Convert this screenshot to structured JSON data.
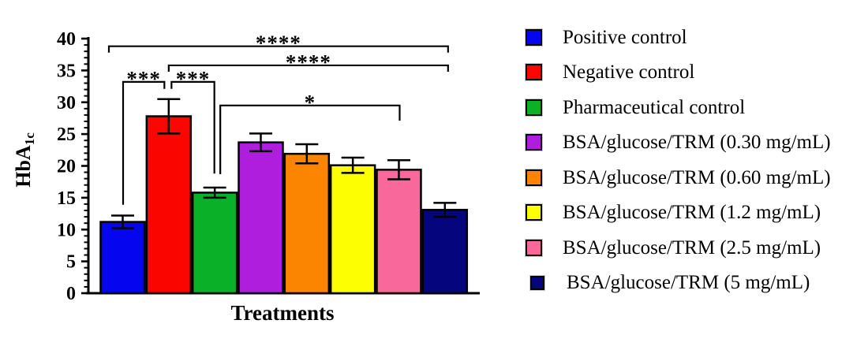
{
  "figure": {
    "background": "#ffffff"
  },
  "chart_data": {
    "type": "bar",
    "title": "",
    "xlabel": "Treatments",
    "ylabel": "HbA1c",
    "ylabel_rich": {
      "base": "HbA",
      "sub": "1c"
    },
    "ylim": [
      0,
      40
    ],
    "ytick_step": 5,
    "yminor_step": 1,
    "y_tick_labels": [
      "0",
      "5",
      "10",
      "15",
      "20",
      "25",
      "30",
      "35",
      "40"
    ],
    "grid": false,
    "legend_position": "right-of-plot",
    "categories": [
      "Positive control",
      "Negative control",
      "Pharmaceutical control",
      "BSA/glucose/TRM (0.30 mg/mL)",
      "BSA/glucose/TRM (0.60 mg/mL)",
      "BSA/glucose/TRM (1.2 mg/mL)",
      "BSA/glucose/TRM (2.5 mg/mL)",
      "BSA/glucose/TRM (5 mg/mL)"
    ],
    "values": [
      11.2,
      27.8,
      15.8,
      23.7,
      21.9,
      20.1,
      19.4,
      13.1
    ],
    "errors": [
      1.0,
      2.7,
      0.8,
      1.4,
      1.5,
      1.2,
      1.5,
      1.1
    ],
    "colors": [
      "#0505F0",
      "#FB0500",
      "#0AB128",
      "#AF1EDC",
      "#FB8500",
      "#FEFE02",
      "#F8689A",
      "#05057D"
    ],
    "bar_border_color": "#000000",
    "error_bar_color": "#000000",
    "axis_color": "#000000",
    "significance": [
      {
        "group1": 0,
        "group2": 7,
        "stars": "****",
        "line_y": 38.8,
        "dx1": -17.5,
        "dx2": 4,
        "leg1_to": 37.8,
        "leg2_to": 37.8
      },
      {
        "group1": 1,
        "group2": 7,
        "stars": "****",
        "line_y": 35.8,
        "dx1": 0,
        "dx2": 4,
        "leg1_to": 34.8,
        "leg2_to": 34.8
      },
      {
        "group1": 0,
        "group2": 1,
        "stars": "***",
        "line_y": 33.2,
        "dx1": 0.5,
        "dx2": -5.5,
        "leg1_to": 13.9,
        "leg2_to": 32.1
      },
      {
        "group1": 1,
        "group2": 2,
        "stars": "***",
        "line_y": 33.2,
        "dx1": 3.5,
        "dx2": -0.5,
        "leg1_to": 32.1,
        "leg2_to": 18.8
      },
      {
        "group1": 2,
        "group2": 6,
        "stars": "*",
        "line_y": 29.5,
        "dx1": 7,
        "dx2": 1,
        "leg1_to": 18.7,
        "leg2_to": 27.1
      }
    ]
  }
}
